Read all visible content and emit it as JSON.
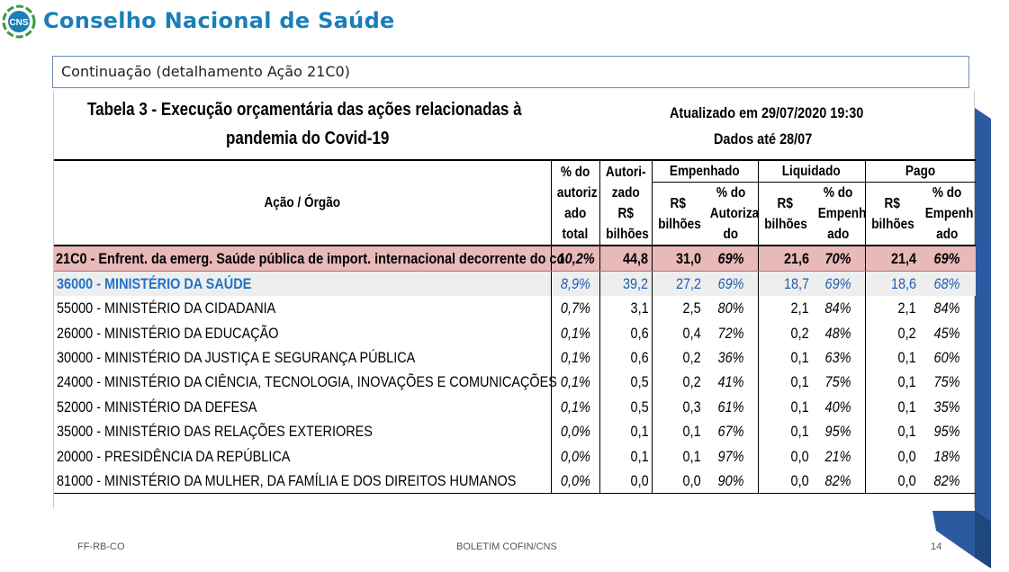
{
  "header": {
    "logo_text": "CNS",
    "brand": "Conselho Nacional de Saúde"
  },
  "continuation": "Continuação (detalhamento Ação 21C0)",
  "table_title": {
    "line1": "Tabela 3 - Execução orçamentária das ações relacionadas à",
    "line2": "pandemia do Covid-19",
    "updated": "Atualizado em 29/07/2020 19:30",
    "data_until": "Dados até 28/07"
  },
  "columns": {
    "acao_orgao": "Ação / Órgão",
    "pct_autoriz": [
      "% do",
      "autoriz",
      "ado",
      "total"
    ],
    "autorizado": [
      "Autori-",
      "zado",
      "R$",
      "bilhões"
    ],
    "empenhado": "Empenhado",
    "liquidado": "Liquidado",
    "pago": "Pago",
    "rs": [
      "R$",
      "bilhões"
    ],
    "pct_autoriza": [
      "% do",
      "Autoriza",
      "do"
    ],
    "pct_empenh": [
      "% do",
      "Empenh",
      "ado"
    ]
  },
  "rows": [
    {
      "name": "21C0 - Enfrent. da emerg. Saúde pública de import. internacional decorrente do co",
      "pct": "10,2%",
      "aut": "44,8",
      "emp": "31,0",
      "emp_pct": "69%",
      "liq": "21,6",
      "liq_pct": "70%",
      "pag": "21,4",
      "pag_pct": "69%"
    },
    {
      "name": "36000 - MINISTÉRIO DA SAÚDE",
      "pct": "8,9%",
      "aut": "39,2",
      "emp": "27,2",
      "emp_pct": "69%",
      "liq": "18,7",
      "liq_pct": "69%",
      "pag": "18,6",
      "pag_pct": "68%"
    },
    {
      "name": "55000 - MINISTÉRIO DA CIDADANIA",
      "pct": "0,7%",
      "aut": "3,1",
      "emp": "2,5",
      "emp_pct": "80%",
      "liq": "2,1",
      "liq_pct": "84%",
      "pag": "2,1",
      "pag_pct": "84%"
    },
    {
      "name": "26000 - MINISTÉRIO DA EDUCAÇÃO",
      "pct": "0,1%",
      "aut": "0,6",
      "emp": "0,4",
      "emp_pct": "72%",
      "liq": "0,2",
      "liq_pct": "48%",
      "pag": "0,2",
      "pag_pct": "45%"
    },
    {
      "name": "30000 - MINISTÉRIO DA JUSTIÇA E SEGURANÇA PÚBLICA",
      "pct": "0,1%",
      "aut": "0,6",
      "emp": "0,2",
      "emp_pct": "36%",
      "liq": "0,1",
      "liq_pct": "63%",
      "pag": "0,1",
      "pag_pct": "60%"
    },
    {
      "name": "24000 - MINISTÉRIO DA CIÊNCIA, TECNOLOGIA, INOVAÇÕES E COMUNICAÇÕES",
      "pct": "0,1%",
      "aut": "0,5",
      "emp": "0,2",
      "emp_pct": "41%",
      "liq": "0,1",
      "liq_pct": "75%",
      "pag": "0,1",
      "pag_pct": "75%"
    },
    {
      "name": "52000 - MINISTÉRIO DA DEFESA",
      "pct": "0,1%",
      "aut": "0,5",
      "emp": "0,3",
      "emp_pct": "61%",
      "liq": "0,1",
      "liq_pct": "40%",
      "pag": "0,1",
      "pag_pct": "35%"
    },
    {
      "name": "35000 - MINISTÉRIO DAS RELAÇÕES EXTERIORES",
      "pct": "0,0%",
      "aut": "0,1",
      "emp": "0,1",
      "emp_pct": "67%",
      "liq": "0,1",
      "liq_pct": "95%",
      "pag": "0,1",
      "pag_pct": "95%"
    },
    {
      "name": "20000 - PRESIDÊNCIA DA REPÚBLICA",
      "pct": "0,0%",
      "aut": "0,1",
      "emp": "0,1",
      "emp_pct": "97%",
      "liq": "0,0",
      "liq_pct": "21%",
      "pag": "0,0",
      "pag_pct": "18%"
    },
    {
      "name": "81000 - MINISTÉRIO DA MULHER, DA FAMÍLIA E DOS DIREITOS HUMANOS",
      "pct": "0,0%",
      "aut": "0,0",
      "emp": "0,0",
      "emp_pct": "90%",
      "liq": "0,0",
      "liq_pct": "82%",
      "pag": "0,0",
      "pag_pct": "82%"
    }
  ],
  "footer": {
    "left": "FF-RB-CO",
    "center": "BOLETIM COFIN/CNS",
    "page": "14"
  },
  "colors": {
    "brand": "#1a7fb8",
    "total_row_bg": "#e8b9b9",
    "ministry_row_text": "#1f73c8",
    "ribbon": "#2b5aa0"
  }
}
